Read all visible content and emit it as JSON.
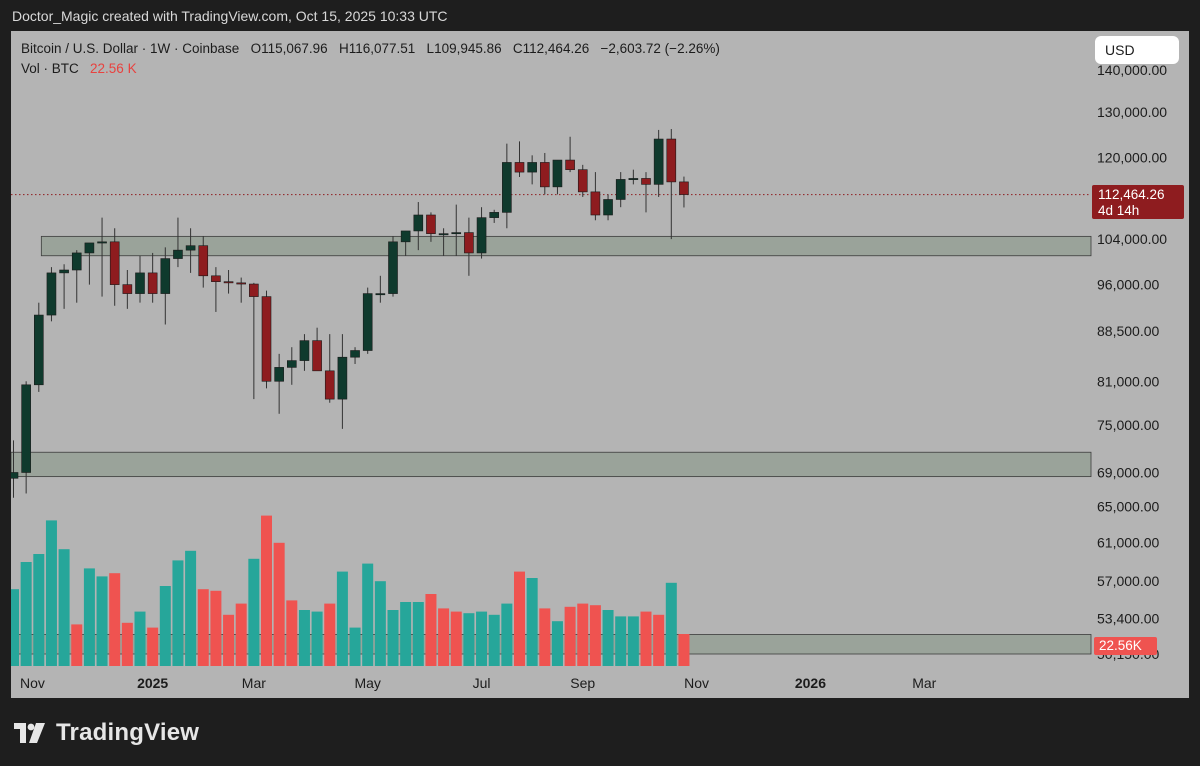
{
  "caption": "Doctor_Magic created with TradingView.com, Oct 15, 2025 10:33 UTC",
  "legend": {
    "symbol": "Bitcoin / U.S. Dollar · 1W · Coinbase",
    "open_label": "O",
    "open": "115,067.96",
    "high_label": "H",
    "high": "116,077.51",
    "low_label": "L",
    "low": "109,945.86",
    "close_label": "C",
    "close": "112,464.26",
    "change": "−2,603.72 (−2.26%)",
    "vol_label": "Vol · BTC",
    "vol_value": "22.56 K"
  },
  "currency_button": "USD",
  "price_tag": {
    "price": "112,464.26",
    "countdown": "4d 14h"
  },
  "volume_tag": "22.56K",
  "brand": {
    "name": "TradingView"
  },
  "colors": {
    "up": "#0f3a2d",
    "down": "#8e1c1f",
    "vol_up": "#26a69a",
    "vol_down": "#ef5350",
    "bg": "#b4b4b4",
    "zone": "#9aa39a"
  },
  "chart_data": {
    "type": "candlestick",
    "y_scale": "log",
    "ylim": [
      50150,
      140000
    ],
    "y_ticks": [
      "140,000.00",
      "130,000.00",
      "120,000.00",
      "104,000.00",
      "96,000.00",
      "88,500.00",
      "81,000.00",
      "75,000.00",
      "69,000.00",
      "65,000.00",
      "61,000.00",
      "57,000.00",
      "53,400.00",
      "50,150.00"
    ],
    "y_tick_values": [
      140000,
      130000,
      120000,
      104000,
      96000,
      88500,
      81000,
      75000,
      69000,
      65000,
      61000,
      57000,
      53400,
      50150
    ],
    "x_ticks": [
      "Nov",
      "2025",
      "Mar",
      "May",
      "Jul",
      "Sep",
      "Nov",
      "2026",
      "Mar"
    ],
    "x_tick_weeks": [
      1.5,
      11,
      19,
      28,
      37,
      45,
      54,
      63,
      72
    ],
    "last_price": 112464.26,
    "zones": [
      {
        "from": 101000,
        "to": 104500
      },
      {
        "from": 68500,
        "to": 71500
      },
      {
        "from": 50150,
        "to": 51900
      }
    ],
    "candles": [
      {
        "o": 68300,
        "h": 73000,
        "l": 66000,
        "c": 69000
      },
      {
        "o": 69000,
        "h": 81000,
        "l": 66500,
        "c": 80500
      },
      {
        "o": 80500,
        "h": 93000,
        "l": 79500,
        "c": 91000
      },
      {
        "o": 91000,
        "h": 99000,
        "l": 90000,
        "c": 98000
      },
      {
        "o": 98000,
        "h": 99500,
        "l": 92000,
        "c": 98500
      },
      {
        "o": 98500,
        "h": 102000,
        "l": 93000,
        "c": 101500
      },
      {
        "o": 101500,
        "h": 103000,
        "l": 96000,
        "c": 103300
      },
      {
        "o": 103300,
        "h": 108000,
        "l": 94000,
        "c": 103500
      },
      {
        "o": 103500,
        "h": 106000,
        "l": 92500,
        "c": 96000
      },
      {
        "o": 96000,
        "h": 98500,
        "l": 92000,
        "c": 94500
      },
      {
        "o": 94500,
        "h": 101000,
        "l": 93000,
        "c": 98000
      },
      {
        "o": 98000,
        "h": 101500,
        "l": 93000,
        "c": 94500
      },
      {
        "o": 94500,
        "h": 102500,
        "l": 89500,
        "c": 100500
      },
      {
        "o": 100500,
        "h": 108000,
        "l": 99000,
        "c": 102000
      },
      {
        "o": 102000,
        "h": 106000,
        "l": 98000,
        "c": 102800
      },
      {
        "o": 102800,
        "h": 104500,
        "l": 95500,
        "c": 97500
      },
      {
        "o": 97500,
        "h": 99000,
        "l": 91500,
        "c": 96500
      },
      {
        "o": 96500,
        "h": 98500,
        "l": 94500,
        "c": 96300
      },
      {
        "o": 96300,
        "h": 97200,
        "l": 93000,
        "c": 96100
      },
      {
        "o": 96100,
        "h": 96300,
        "l": 78500,
        "c": 94000
      },
      {
        "o": 94000,
        "h": 95000,
        "l": 80000,
        "c": 81000
      },
      {
        "o": 81000,
        "h": 85000,
        "l": 76500,
        "c": 83000
      },
      {
        "o": 83000,
        "h": 86000,
        "l": 80500,
        "c": 84000
      },
      {
        "o": 84000,
        "h": 88000,
        "l": 82500,
        "c": 87000
      },
      {
        "o": 87000,
        "h": 89000,
        "l": 82500,
        "c": 82500
      },
      {
        "o": 82500,
        "h": 88000,
        "l": 78000,
        "c": 78500
      },
      {
        "o": 78500,
        "h": 88000,
        "l": 74500,
        "c": 84500
      },
      {
        "o": 84500,
        "h": 86000,
        "l": 83500,
        "c": 85500
      },
      {
        "o": 85500,
        "h": 95500,
        "l": 85000,
        "c": 94500
      },
      {
        "o": 94500,
        "h": 97500,
        "l": 93000,
        "c": 94500
      },
      {
        "o": 94500,
        "h": 104500,
        "l": 94000,
        "c": 103500
      },
      {
        "o": 103500,
        "h": 105500,
        "l": 101000,
        "c": 105500
      },
      {
        "o": 105500,
        "h": 111000,
        "l": 102000,
        "c": 108500
      },
      {
        "o": 108500,
        "h": 109000,
        "l": 103500,
        "c": 105000
      },
      {
        "o": 105000,
        "h": 106000,
        "l": 101000,
        "c": 105000
      },
      {
        "o": 105000,
        "h": 110500,
        "l": 101000,
        "c": 105200
      },
      {
        "o": 105200,
        "h": 108000,
        "l": 97500,
        "c": 101500
      },
      {
        "o": 101500,
        "h": 110000,
        "l": 100500,
        "c": 108000
      },
      {
        "o": 108000,
        "h": 109500,
        "l": 107000,
        "c": 109000
      },
      {
        "o": 109000,
        "h": 123000,
        "l": 106000,
        "c": 119000
      },
      {
        "o": 119000,
        "h": 123500,
        "l": 116000,
        "c": 117000
      },
      {
        "o": 117000,
        "h": 120500,
        "l": 114500,
        "c": 119000
      },
      {
        "o": 119000,
        "h": 121000,
        "l": 112500,
        "c": 114000
      },
      {
        "o": 114000,
        "h": 119500,
        "l": 112500,
        "c": 119500
      },
      {
        "o": 119500,
        "h": 124500,
        "l": 117000,
        "c": 117500
      },
      {
        "o": 117500,
        "h": 118500,
        "l": 112000,
        "c": 113000
      },
      {
        "o": 113000,
        "h": 117000,
        "l": 107500,
        "c": 108500
      },
      {
        "o": 108500,
        "h": 112500,
        "l": 107500,
        "c": 111500
      },
      {
        "o": 111500,
        "h": 117000,
        "l": 110000,
        "c": 115500
      },
      {
        "o": 115500,
        "h": 117500,
        "l": 114500,
        "c": 115700
      },
      {
        "o": 115700,
        "h": 117000,
        "l": 109000,
        "c": 114500
      },
      {
        "o": 114500,
        "h": 126000,
        "l": 112000,
        "c": 124000
      },
      {
        "o": 124000,
        "h": 126200,
        "l": 104000,
        "c": 115000
      },
      {
        "o": 115000,
        "h": 116077,
        "l": 109946,
        "c": 112464
      }
    ],
    "volume": {
      "scale_max": 100,
      "values": [
        48,
        65,
        70,
        91,
        73,
        26,
        61,
        56,
        58,
        27,
        34,
        24,
        50,
        66,
        72,
        48,
        47,
        32,
        39,
        67,
        94,
        77,
        41,
        35,
        34,
        39,
        59,
        24,
        64,
        53,
        35,
        40,
        40,
        45,
        36,
        34,
        33,
        34,
        32,
        39,
        59,
        55,
        36,
        28,
        37,
        39,
        38,
        35,
        31,
        31,
        34,
        32,
        52,
        20
      ],
      "directions": [
        "up",
        "up",
        "up",
        "up",
        "up",
        "down",
        "up",
        "up",
        "down",
        "down",
        "up",
        "down",
        "up",
        "up",
        "up",
        "down",
        "down",
        "down",
        "down",
        "up",
        "down",
        "down",
        "down",
        "up",
        "up",
        "down",
        "up",
        "up",
        "up",
        "up",
        "up",
        "up",
        "up",
        "down",
        "down",
        "down",
        "up",
        "up",
        "up",
        "up",
        "down",
        "up",
        "down",
        "up",
        "down",
        "down",
        "down",
        "up",
        "up",
        "up",
        "down",
        "down",
        "up",
        "down"
      ]
    }
  }
}
